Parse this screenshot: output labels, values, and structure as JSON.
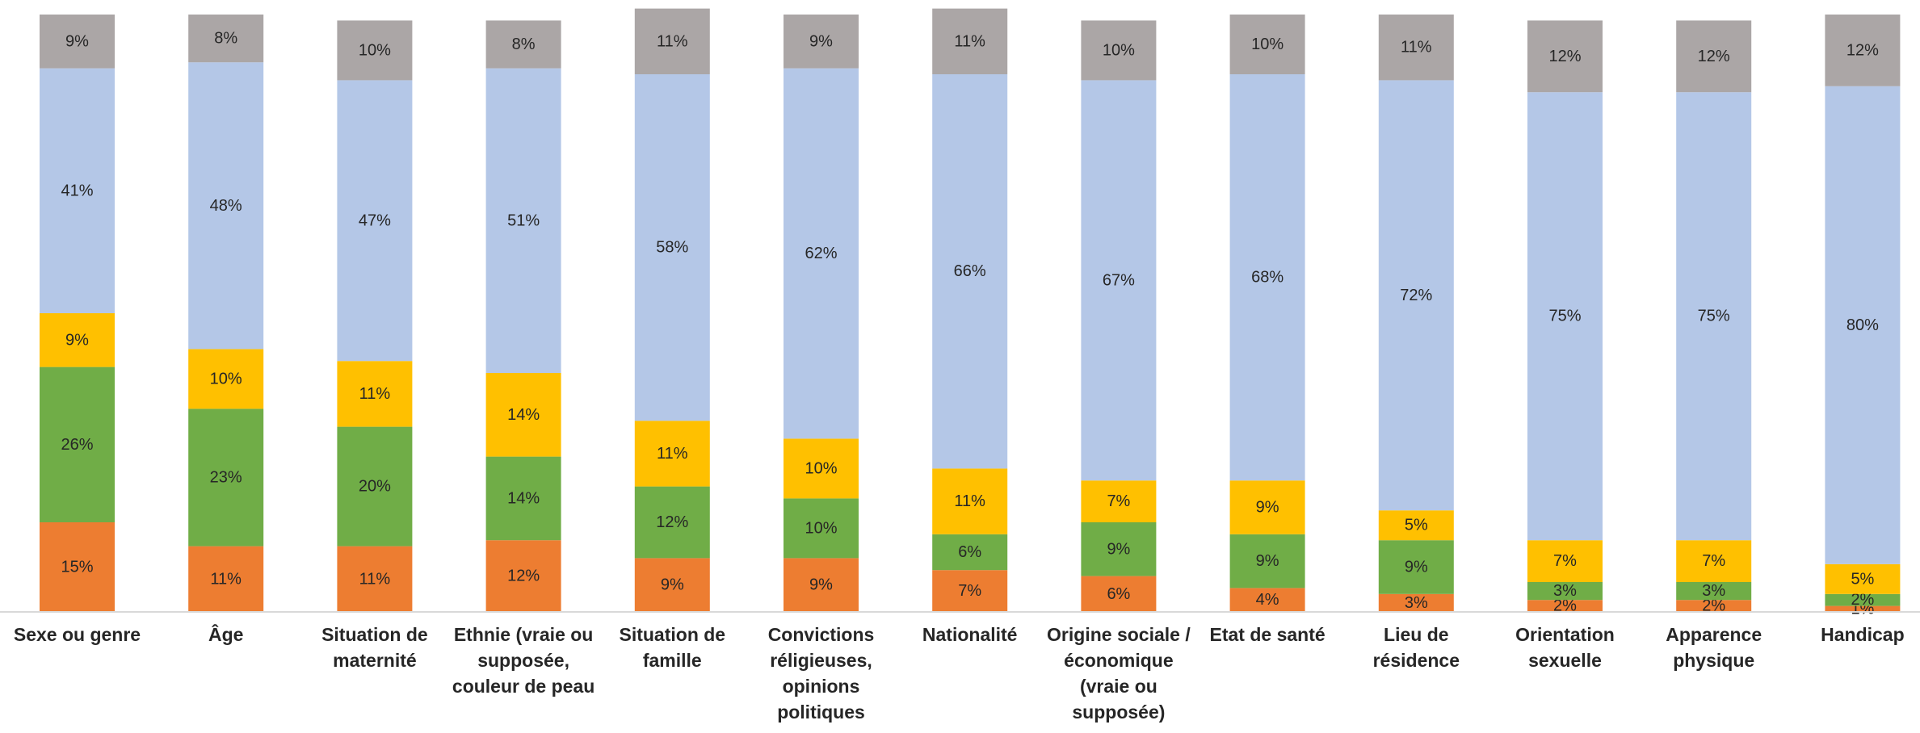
{
  "chart_data": {
    "type": "bar",
    "stacked": true,
    "percent_stacked": true,
    "title": "",
    "xlabel": "",
    "ylabel": "",
    "legend": "none",
    "grid": false,
    "ylim": [
      0,
      100
    ],
    "categories": [
      [
        "Sexe ou genre"
      ],
      [
        "Âge"
      ],
      [
        "Situation de",
        "maternité"
      ],
      [
        "Ethnie (vraie ou",
        "supposée,",
        "couleur de peau"
      ],
      [
        "Situation de",
        "famille"
      ],
      [
        "Convictions",
        "réligieuses,",
        "opinions",
        "politiques"
      ],
      [
        "Nationalité"
      ],
      [
        "Origine sociale /",
        "économique",
        "(vraie ou",
        "supposée)"
      ],
      [
        "Etat de santé"
      ],
      [
        "Lieu de",
        "résidence"
      ],
      [
        "Orientation",
        "sexuelle"
      ],
      [
        "Apparence",
        "physique"
      ],
      [
        "Handicap"
      ]
    ],
    "series": [
      {
        "color": "#ED7D31",
        "values": [
          15,
          11,
          11,
          12,
          9,
          9,
          7,
          6,
          4,
          3,
          2,
          2,
          1
        ]
      },
      {
        "color": "#70AD47",
        "values": [
          26,
          23,
          20,
          14,
          12,
          10,
          6,
          9,
          9,
          9,
          3,
          3,
          2
        ]
      },
      {
        "color": "#FFC000",
        "values": [
          9,
          10,
          11,
          14,
          11,
          10,
          11,
          7,
          9,
          5,
          7,
          7,
          5
        ]
      },
      {
        "color": "#B4C7E7",
        "values": [
          41,
          48,
          47,
          51,
          58,
          62,
          66,
          67,
          68,
          72,
          75,
          75,
          80
        ]
      },
      {
        "color": "#ABA6A6",
        "values": [
          9,
          8,
          10,
          8,
          11,
          9,
          11,
          10,
          10,
          11,
          12,
          12,
          12
        ]
      }
    ],
    "value_suffix": "%"
  }
}
